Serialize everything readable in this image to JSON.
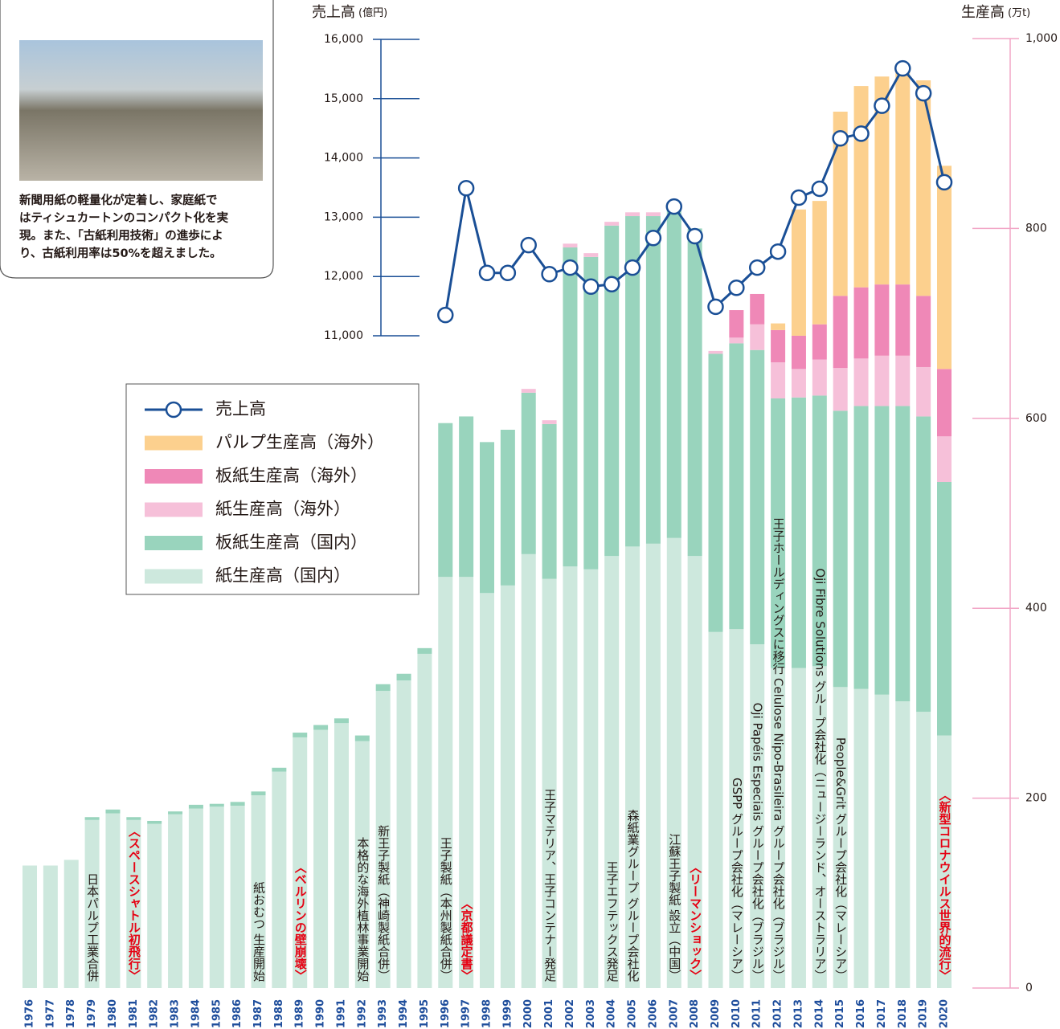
{
  "panel": {
    "caption": [
      "新聞用紙の軽量化が定着し、家庭紙で",
      "はティシュカートンのコンパクト化を実",
      "現。また、「古紙利用技術」の進歩によ",
      "り、古紙利用率は50%を超えました。"
    ]
  },
  "chart_data": {
    "type": "bar-line",
    "y_label": "売上高",
    "y_label_unit": "(億円)",
    "y2_label": "生産高",
    "y2_label_unit": "(万t)",
    "categories": [
      "1976",
      "1977",
      "1978",
      "1979",
      "1980",
      "1981",
      "1982",
      "1983",
      "1984",
      "1985",
      "1986",
      "1987",
      "1988",
      "1989",
      "1990",
      "1991",
      "1992",
      "1993",
      "1994",
      "1995",
      "1996",
      "1997",
      "1998",
      "1999",
      "2000",
      "2001",
      "2002",
      "2003",
      "2004",
      "2005",
      "2006",
      "2007",
      "2008",
      "2009",
      "2010",
      "2011",
      "2012",
      "2013",
      "2014",
      "2015",
      "2016",
      "2017",
      "2018",
      "2019",
      "2020"
    ],
    "ylim": [
      11000,
      16000
    ],
    "yticks": [
      {
        "value": 11000,
        "label": "11,000"
      },
      {
        "value": 12000,
        "label": "12,000"
      },
      {
        "value": 13000,
        "label": "13,000"
      },
      {
        "value": 14000,
        "label": "14,000"
      },
      {
        "value": 15000,
        "label": "15,000"
      },
      {
        "value": 16000,
        "label": "16,000"
      }
    ],
    "y2lim": [
      0,
      1000
    ],
    "y2ticks": [
      0,
      200,
      400,
      600,
      800,
      {
        "value": 1000,
        "label": "1,000"
      }
    ],
    "series": [
      {
        "name": "売上高",
        "type": "line",
        "color": "#1a4f96",
        "values": [
          null,
          null,
          null,
          null,
          null,
          null,
          null,
          null,
          null,
          null,
          null,
          null,
          null,
          null,
          null,
          null,
          null,
          null,
          null,
          null,
          11350,
          13490,
          12060,
          12060,
          12530,
          12040,
          12150,
          11830,
          11870,
          12150,
          12650,
          13180,
          12680,
          11490,
          11810,
          12150,
          12420,
          13330,
          13480,
          14330,
          14410,
          14880,
          15510,
          15090,
          13590
        ]
      },
      {
        "name": "パルプ生産高（海外）",
        "type": "bar",
        "axis": "y2",
        "color": "#fcd08e",
        "values": [
          null,
          null,
          null,
          null,
          null,
          null,
          null,
          null,
          null,
          null,
          null,
          null,
          null,
          null,
          null,
          null,
          null,
          null,
          null,
          null,
          null,
          null,
          null,
          null,
          null,
          null,
          null,
          null,
          null,
          null,
          null,
          null,
          null,
          null,
          null,
          null,
          7,
          133,
          130,
          194,
          212,
          219,
          224,
          227,
          214
        ]
      },
      {
        "name": "板紙生産高（海外）",
        "type": "bar",
        "axis": "y2",
        "color": "#ef88b7",
        "values": [
          null,
          null,
          null,
          null,
          null,
          null,
          null,
          null,
          null,
          null,
          null,
          null,
          null,
          null,
          null,
          null,
          null,
          null,
          null,
          null,
          null,
          null,
          null,
          null,
          null,
          null,
          null,
          null,
          null,
          null,
          null,
          null,
          null,
          null,
          29,
          32,
          34,
          35,
          37,
          76,
          75,
          75,
          75,
          75,
          71
        ]
      },
      {
        "name": "紙生産高（海外）",
        "type": "bar",
        "axis": "y2",
        "color": "#f6c0d9",
        "values": [
          null,
          null,
          null,
          null,
          null,
          null,
          null,
          null,
          null,
          null,
          null,
          null,
          null,
          null,
          null,
          null,
          null,
          null,
          null,
          null,
          null,
          null,
          null,
          null,
          4,
          4,
          4,
          4,
          4,
          4,
          4,
          null,
          null,
          3,
          6,
          27,
          38,
          30,
          38,
          45,
          50,
          53,
          53,
          52,
          48
        ]
      },
      {
        "name": "板紙生産高（国内）",
        "type": "bar",
        "axis": "y2",
        "color": "#99d4bd",
        "values": [
          0,
          0,
          0,
          3,
          4,
          3,
          3,
          3,
          4,
          3,
          4,
          4,
          4,
          5,
          5,
          5,
          6,
          7,
          7,
          6,
          162,
          169,
          159,
          164,
          170,
          163,
          336,
          329,
          348,
          348,
          345,
          346,
          345,
          293,
          301,
          310,
          284,
          285,
          285,
          291,
          298,
          304,
          311,
          311,
          267
        ]
      },
      {
        "name": "紙生産高（国内）",
        "type": "bar",
        "axis": "y2",
        "color": "#cde8dd",
        "values": [
          129,
          129,
          135,
          177,
          184,
          177,
          173,
          183,
          189,
          191,
          192,
          203,
          228,
          264,
          272,
          279,
          260,
          313,
          324,
          352,
          433,
          433,
          416,
          424,
          457,
          431,
          444,
          441,
          455,
          465,
          468,
          474,
          455,
          375,
          378,
          362,
          337,
          337,
          339,
          317,
          315,
          309,
          302,
          291,
          266
        ]
      }
    ],
    "annotations": [
      {
        "x": "1979",
        "text": "日本パルプ工業合併"
      },
      {
        "x": "1981",
        "text": "〈スペースシャトル初飛行〉",
        "color": "#e60012"
      },
      {
        "x": "1987",
        "text": "紙おむつ 生産開始"
      },
      {
        "x": "1989",
        "text": "〈ベルリンの壁崩壊〉",
        "color": "#e60012"
      },
      {
        "x": "1992",
        "text": "本格的な海外植林事業開始"
      },
      {
        "x": "1993",
        "text": "新王子製紙（神崎製紙合併）"
      },
      {
        "x": "1996",
        "text": "王子製紙（本州製紙合併）"
      },
      {
        "x": "1997",
        "text": "〈京都議定書〉",
        "color": "#e60012"
      },
      {
        "x": "2001",
        "text": "王子マテリア、王子コンテナー発足"
      },
      {
        "x": "2004",
        "text": "王子エフテックス発足"
      },
      {
        "x": "2005",
        "text": "森紙業グループ グループ会社化"
      },
      {
        "x": "2007",
        "text": "江蘇王子製紙 設立（中国）"
      },
      {
        "x": "2008",
        "text": "〈リーマンショック〉",
        "color": "#e60012"
      },
      {
        "x": "2010",
        "text": "GSPP グループ会社化（マレーシア）"
      },
      {
        "x": "2011",
        "text": "Oji Papéis Especiais グループ会社化（ブラジル）"
      },
      {
        "x": "2012",
        "text": "王子ホールディングスに移行 Celulose Nipo-Brasileira グループ会社化（ブラジル）"
      },
      {
        "x": "2014",
        "text": "Oji Fibre Solutions グループ会社化（ニュージーランド、オーストラリア）"
      },
      {
        "x": "2015",
        "text": "People&Grit グループ会社化（マレーシア）"
      },
      {
        "x": "2020",
        "text": "〈新型コロナウイルス世界的流行〉",
        "color": "#e60012"
      }
    ]
  }
}
